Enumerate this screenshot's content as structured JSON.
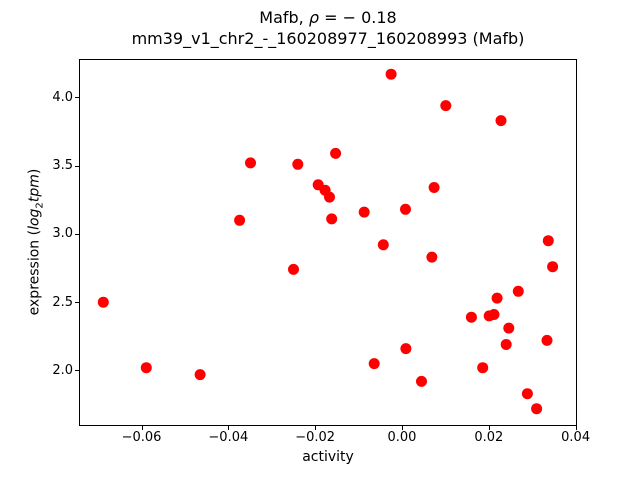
{
  "figure": {
    "title_pre": "Mafb, ",
    "title_rho": "ρ",
    "title_post": " = − 0.18",
    "subtitle": "mm39_v1_chr2_-_160208977_160208993 (Mafb)",
    "xlabel": "activity",
    "ylabel_pre": "expression (",
    "ylabel_italic1": "log",
    "ylabel_sub": "2",
    "ylabel_italic2": "tpm",
    "ylabel_post": ")"
  },
  "chart_data": {
    "type": "scatter",
    "title": "Mafb, ρ = − 0.18",
    "subtitle": "mm39_v1_chr2_-_160208977_160208993 (Mafb)",
    "xlabel": "activity",
    "ylabel": "expression (log₂tpm)",
    "marker_color": "#ff0000",
    "marker_diameter_px": 11,
    "grid": false,
    "xlim": [
      -0.0744,
      0.0402
    ],
    "ylim": [
      1.597,
      4.281
    ],
    "xticks": [
      -0.06,
      -0.04,
      -0.02,
      0.0,
      0.02,
      0.04
    ],
    "xtick_labels": [
      "−0.06",
      "−0.04",
      "−0.02",
      "0.00",
      "0.02",
      "0.04"
    ],
    "yticks": [
      2.0,
      2.5,
      3.0,
      3.5,
      4.0
    ],
    "ytick_labels": [
      "2.0",
      "2.5",
      "3.0",
      "3.5",
      "4.0"
    ],
    "points": [
      [
        -0.0688,
        2.5
      ],
      [
        -0.0589,
        2.02
      ],
      [
        -0.0465,
        1.97
      ],
      [
        -0.0374,
        3.1
      ],
      [
        -0.0349,
        3.52
      ],
      [
        -0.025,
        2.74
      ],
      [
        -0.024,
        3.51
      ],
      [
        -0.0193,
        3.36
      ],
      [
        -0.0177,
        3.32
      ],
      [
        -0.0167,
        3.27
      ],
      [
        -0.0162,
        3.11
      ],
      [
        -0.0153,
        3.59
      ],
      [
        -0.0087,
        3.16
      ],
      [
        -0.0064,
        2.05
      ],
      [
        -0.0043,
        2.92
      ],
      [
        -0.0025,
        4.17
      ],
      [
        0.0008,
        3.18
      ],
      [
        0.0009,
        2.16
      ],
      [
        0.0045,
        1.92
      ],
      [
        0.0069,
        2.83
      ],
      [
        0.0074,
        3.34
      ],
      [
        0.0101,
        3.94
      ],
      [
        0.016,
        2.39
      ],
      [
        0.0186,
        2.02
      ],
      [
        0.0201,
        2.4
      ],
      [
        0.0212,
        2.41
      ],
      [
        0.0219,
        2.53
      ],
      [
        0.0228,
        3.83
      ],
      [
        0.024,
        2.19
      ],
      [
        0.0246,
        2.31
      ],
      [
        0.0268,
        2.58
      ],
      [
        0.0289,
        1.83
      ],
      [
        0.031,
        1.72
      ],
      [
        0.0334,
        2.22
      ],
      [
        0.0337,
        2.95
      ],
      [
        0.0347,
        2.76
      ]
    ]
  }
}
